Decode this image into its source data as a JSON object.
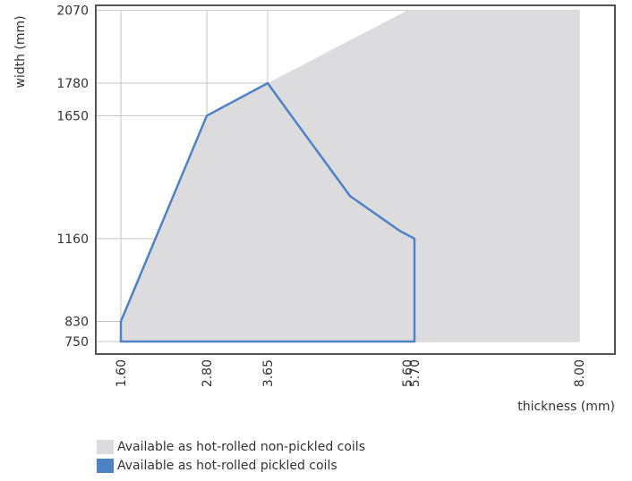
{
  "chart_data": {
    "type": "area",
    "xlabel": "thickness (mm)",
    "ylabel": "width (mm)",
    "x_ticks": [
      {
        "value": 1.6,
        "label": "1.60"
      },
      {
        "value": 2.8,
        "label": "2.80"
      },
      {
        "value": 3.65,
        "label": "3.65"
      },
      {
        "value": 5.6,
        "label": "5.60"
      },
      {
        "value": 5.7,
        "label": "5.70"
      },
      {
        "value": 8.0,
        "label": "8.00"
      }
    ],
    "y_ticks": [
      {
        "value": 750,
        "label": "750"
      },
      {
        "value": 830,
        "label": "830"
      },
      {
        "value": 1160,
        "label": "1160"
      },
      {
        "value": 1650,
        "label": "1650"
      },
      {
        "value": 1780,
        "label": "1780"
      },
      {
        "value": 2070,
        "label": "2070"
      }
    ],
    "xlim": [
      1.25,
      8.5
    ],
    "ylim": [
      700,
      2090
    ],
    "grid": true,
    "series": [
      {
        "name": "Available as hot-rolled non-pickled coils",
        "kind": "filled-region",
        "color": "#dcdcdf",
        "points": [
          [
            1.6,
            750
          ],
          [
            1.6,
            830
          ],
          [
            2.8,
            1650
          ],
          [
            3.65,
            1780
          ],
          [
            5.6,
            2070
          ],
          [
            8.0,
            2070
          ],
          [
            8.0,
            750
          ]
        ]
      },
      {
        "name": "Available as hot-rolled pickled coils",
        "kind": "outline",
        "color": "#4f81c5",
        "points": [
          [
            1.6,
            750
          ],
          [
            1.6,
            830
          ],
          [
            2.8,
            1650
          ],
          [
            3.65,
            1780
          ],
          [
            3.98,
            1650
          ],
          [
            4.8,
            1330
          ],
          [
            5.5,
            1190
          ],
          [
            5.7,
            1160
          ],
          [
            5.7,
            750
          ]
        ]
      }
    ]
  }
}
